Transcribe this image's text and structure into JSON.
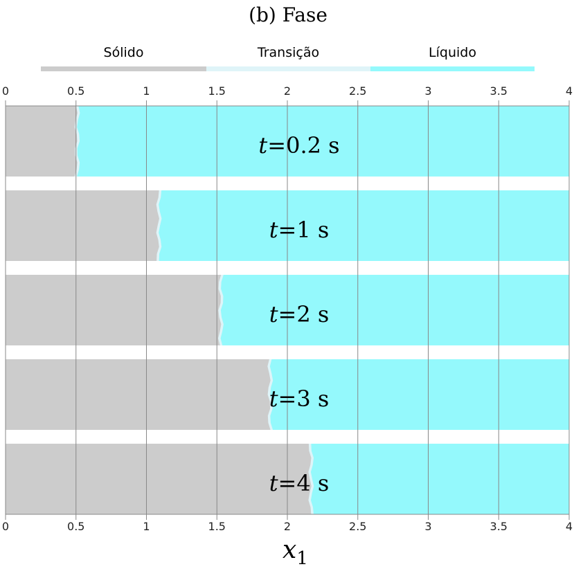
{
  "title": "(b) Fase",
  "colors": {
    "solid": "#cccccc",
    "transition": "#dff4f8",
    "liquid": "#94f9fc",
    "grid": "#888888"
  },
  "chart_data": {
    "type": "heatmap",
    "title": "(b) Fase",
    "xlabel": "x",
    "xlabel_subscript": "1",
    "xlim": [
      0,
      4
    ],
    "x_ticks": [
      "0",
      "0.5",
      "1",
      "1.5",
      "2",
      "2.5",
      "3",
      "3.5",
      "4"
    ],
    "grid": true,
    "legend": {
      "placement": "top",
      "entries": [
        {
          "label": "Sólido",
          "color": "#cccccc"
        },
        {
          "label": "Transição",
          "color": "#dff4f8"
        },
        {
          "label": "Líquido",
          "color": "#94f9fc"
        }
      ]
    },
    "snapshots": [
      {
        "t_label": "t",
        "t_rest": "=0.2 s",
        "interface_x": 0.5
      },
      {
        "t_label": "t",
        "t_rest": "=1 s",
        "interface_x": 1.08
      },
      {
        "t_label": "t",
        "t_rest": "=2 s",
        "interface_x": 1.52
      },
      {
        "t_label": "t",
        "t_rest": "=3 s",
        "interface_x": 1.87
      },
      {
        "t_label": "t",
        "t_rest": "=4 s",
        "interface_x": 2.16
      }
    ]
  }
}
